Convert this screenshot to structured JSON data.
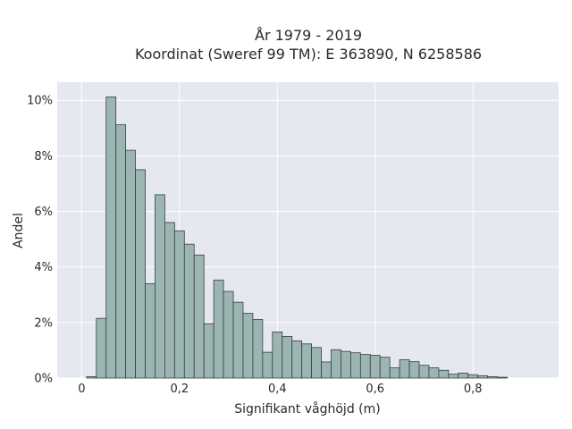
{
  "chart_data": {
    "type": "bar",
    "title_line1": "År 1979 - 2019",
    "title_line2": "Koordinat (Sweref 99 TM): E 363890, N 6258586",
    "xlabel": "Signifikant våghöjd (m)",
    "ylabel": "Andel",
    "xlim": [
      -0.05,
      0.975
    ],
    "ylim": [
      0,
      0.1065
    ],
    "grid": true,
    "x_ticks": [
      0,
      0.2,
      0.4,
      0.6,
      0.8
    ],
    "x_tick_labels": [
      "0",
      "0,2",
      "0,4",
      "0,6",
      "0,8"
    ],
    "y_ticks": [
      0,
      0.02,
      0.04,
      0.06,
      0.08,
      0.1
    ],
    "y_tick_labels": [
      "0%",
      "2%",
      "4%",
      "6%",
      "8%",
      "10%"
    ],
    "bin_width": 0.02,
    "bin_starts": [
      0.01,
      0.03,
      0.05,
      0.07,
      0.09,
      0.11,
      0.13,
      0.15,
      0.17,
      0.19,
      0.21,
      0.23,
      0.25,
      0.27,
      0.29,
      0.31,
      0.33,
      0.35,
      0.37,
      0.39,
      0.41,
      0.43,
      0.45,
      0.47,
      0.49,
      0.51,
      0.53,
      0.55,
      0.57,
      0.59,
      0.61,
      0.63,
      0.65,
      0.67,
      0.69,
      0.71,
      0.73,
      0.75,
      0.77,
      0.79,
      0.81,
      0.83,
      0.85
    ],
    "values": [
      0.0005,
      0.0215,
      0.1012,
      0.0912,
      0.082,
      0.075,
      0.034,
      0.066,
      0.056,
      0.053,
      0.0482,
      0.0443,
      0.0196,
      0.0353,
      0.0312,
      0.0273,
      0.0233,
      0.0211,
      0.0093,
      0.0166,
      0.015,
      0.0134,
      0.0123,
      0.011,
      0.0058,
      0.0102,
      0.0096,
      0.0091,
      0.0085,
      0.0082,
      0.0075,
      0.0037,
      0.0066,
      0.0059,
      0.0046,
      0.0037,
      0.0028,
      0.0014,
      0.0018,
      0.0012,
      0.0008,
      0.0005,
      0.0003
    ],
    "colors": {
      "plot_bg": "#e5e8f1",
      "grid": "#ffffff",
      "bar_fill": "#9bb5b3",
      "bar_stroke": "#3a3f3f"
    }
  }
}
